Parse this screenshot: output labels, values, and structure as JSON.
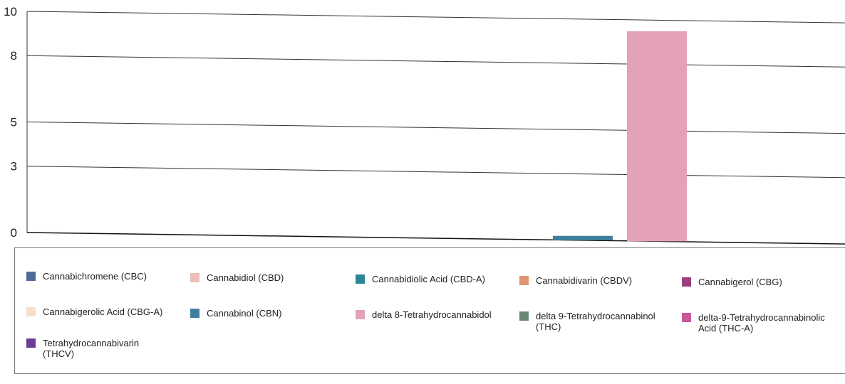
{
  "chart_data": {
    "type": "bar",
    "title": "",
    "xlabel": "",
    "ylabel": "",
    "ylim": [
      0,
      10
    ],
    "yticks": [
      0,
      3,
      5,
      8,
      10
    ],
    "grid": true,
    "legend_position": "bottom",
    "series": [
      {
        "name": "Cannabichromene (CBC)",
        "color": "#4e6b95",
        "value": 0
      },
      {
        "name": "Cannabidiol (CBD)",
        "color": "#eebdbc",
        "value": 0
      },
      {
        "name": "Cannabidiolic Acid (CBD-A)",
        "color": "#2a8597",
        "value": 0
      },
      {
        "name": "Cannabidivarin (CBDV)",
        "color": "#e29472",
        "value": 0
      },
      {
        "name": "Cannabigerol (CBG)",
        "color": "#9a3f7d",
        "value": 0
      },
      {
        "name": "Cannabigerolic Acid (CBG-A)",
        "color": "#f8dfc9",
        "value": 0
      },
      {
        "name": "Cannabinol (CBN)",
        "color": "#3f7f9e",
        "value": 0.2
      },
      {
        "name": "delta 8-Tetrahydrocannabidol",
        "color": "#e3a2b6",
        "value": 9.5
      },
      {
        "name": "delta 9-Tetrahydrocannabinol (THC)",
        "color": "#6a8878",
        "value": 0
      },
      {
        "name": "delta-9-Tetrahydrocannabinolic Acid (THC-A)",
        "color": "#c8589a",
        "value": 0
      },
      {
        "name": "Tetrahydrocannabivarin (THCV)",
        "color": "#6a3d96",
        "value": 0
      }
    ]
  }
}
